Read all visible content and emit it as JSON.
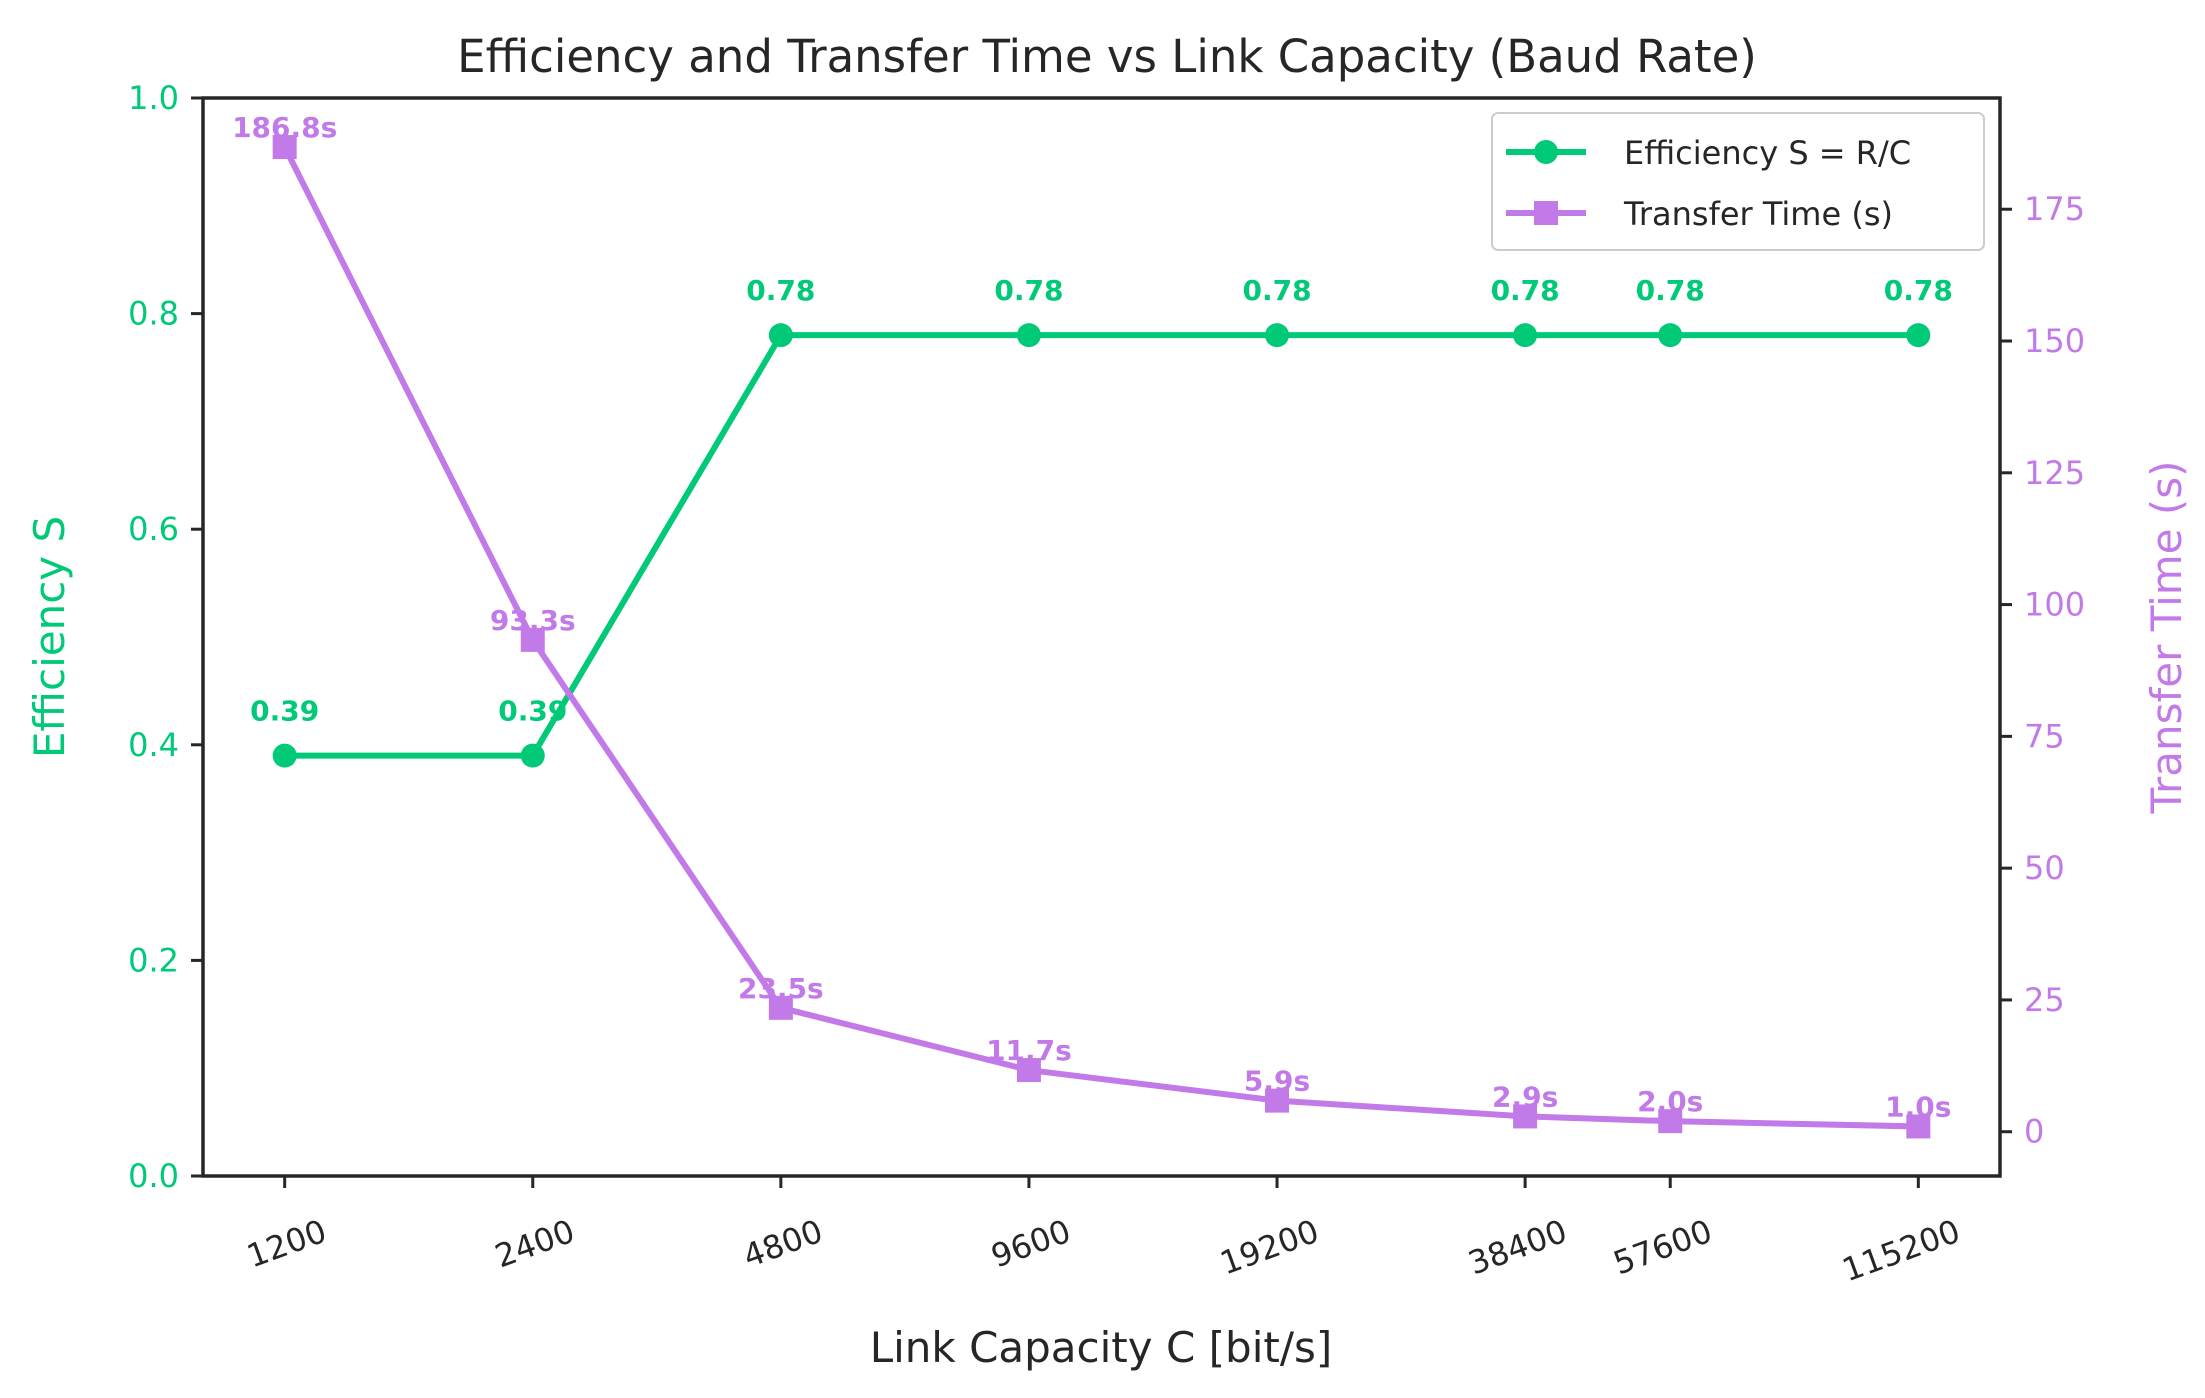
{
  "chart_data": {
    "type": "line",
    "title": "Efficiency and Transfer Time vs Link Capacity (Baud Rate)",
    "xlabel": "Link Capacity C [bit/s]",
    "ylabel_left": "Efficiency S",
    "ylabel_right": "Transfer Time (s)",
    "categories": [
      "1200",
      "2400",
      "4800",
      "9600",
      "19200",
      "38400",
      "57600",
      "115200"
    ],
    "x_values": [
      1200,
      2400,
      4800,
      9600,
      19200,
      38400,
      57600,
      115200
    ],
    "x_scale": "log",
    "ylim_left": [
      0,
      1.0
    ],
    "ylim_right": [
      -8.4,
      196.1
    ],
    "yticks_left": [
      "0.0",
      "0.2",
      "0.4",
      "0.6",
      "0.8",
      "1.0"
    ],
    "yticks_right": [
      "0",
      "25",
      "50",
      "75",
      "100",
      "125",
      "150",
      "175"
    ],
    "grid": false,
    "legend_position": "upper right",
    "series": [
      {
        "name": "Efficiency S = R/C",
        "axis": "left",
        "marker": "circle",
        "color": "#00c978",
        "values": [
          0.39,
          0.39,
          0.78,
          0.78,
          0.78,
          0.78,
          0.78,
          0.78
        ],
        "labels": [
          "0.39",
          "0.39",
          "0.78",
          "0.78",
          "0.78",
          "0.78",
          "0.78",
          "0.78"
        ]
      },
      {
        "name": "Transfer Time (s)",
        "axis": "right",
        "marker": "square",
        "color": "#c27ae8",
        "values": [
          186.8,
          93.3,
          23.5,
          11.7,
          5.9,
          2.9,
          2.0,
          1.0
        ],
        "labels": [
          "186.8s",
          "93.3s",
          "23.5s",
          "11.7s",
          "5.9s",
          "2.9s",
          "2.0s",
          "1.0s"
        ]
      }
    ],
    "colors": {
      "left_axis": "#00c978",
      "right_axis": "#c27ae8",
      "text": "#262626",
      "frame": "#262626"
    }
  }
}
